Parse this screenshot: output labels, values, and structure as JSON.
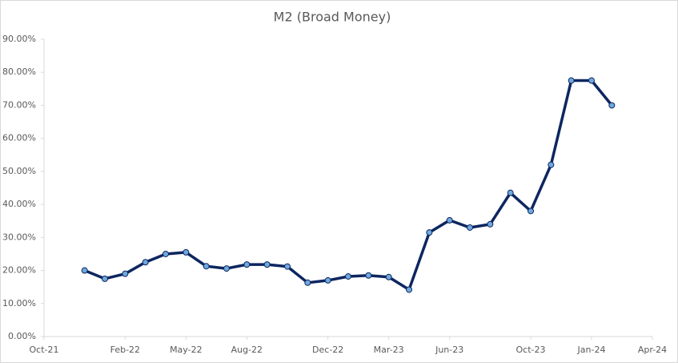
{
  "chart_data": {
    "type": "line",
    "title": "M2 (Broad Money)",
    "x": [
      "2021-12",
      "2022-01",
      "2022-02",
      "2022-03",
      "2022-04",
      "2022-05",
      "2022-06",
      "2022-07",
      "2022-08",
      "2022-09",
      "2022-10",
      "2022-11",
      "2022-12",
      "2023-01",
      "2023-02",
      "2023-03",
      "2023-04",
      "2023-05",
      "2023-06",
      "2023-07",
      "2023-08",
      "2023-09",
      "2023-10",
      "2023-11",
      "2023-12",
      "2024-01",
      "2024-02"
    ],
    "series": [
      {
        "name": "M2",
        "color": "#0d2660",
        "marker_color": "#6fa8dc",
        "values": [
          20,
          17.5,
          19,
          22.5,
          25,
          25.5,
          21.3,
          20.6,
          21.8,
          21.8,
          21.2,
          16.3,
          17,
          18.2,
          18.5,
          18,
          14.2,
          31.5,
          35.2,
          33,
          34,
          43.5,
          38,
          52,
          77.5,
          77.5,
          70
        ]
      }
    ],
    "xlim": [
      "2021-10",
      "2024-04"
    ],
    "xticks": [
      {
        "value": "2021-10",
        "label": "Oct-21"
      },
      {
        "value": "2022-02",
        "label": "Feb-22"
      },
      {
        "value": "2022-05",
        "label": "May-22"
      },
      {
        "value": "2022-08",
        "label": "Aug-22"
      },
      {
        "value": "2022-12",
        "label": "Dec-22"
      },
      {
        "value": "2023-03",
        "label": "Mar-23"
      },
      {
        "value": "2023-06",
        "label": "Jun-23"
      },
      {
        "value": "2023-10",
        "label": "Oct-23"
      },
      {
        "value": "2024-01",
        "label": "Jan-24"
      },
      {
        "value": "2024-04",
        "label": "Apr-24"
      }
    ],
    "ylim": [
      0,
      90
    ],
    "yticks": [
      {
        "value": 0,
        "label": "0.00%"
      },
      {
        "value": 10,
        "label": "10.00%"
      },
      {
        "value": 20,
        "label": "20.00%"
      },
      {
        "value": 30,
        "label": "30.00%"
      },
      {
        "value": 40,
        "label": "40.00%"
      },
      {
        "value": 50,
        "label": "50.00%"
      },
      {
        "value": 60,
        "label": "60.00%"
      },
      {
        "value": 70,
        "label": "70.00%"
      },
      {
        "value": 80,
        "label": "80.00%"
      },
      {
        "value": 90,
        "label": "90.00%"
      }
    ],
    "grid": false
  }
}
